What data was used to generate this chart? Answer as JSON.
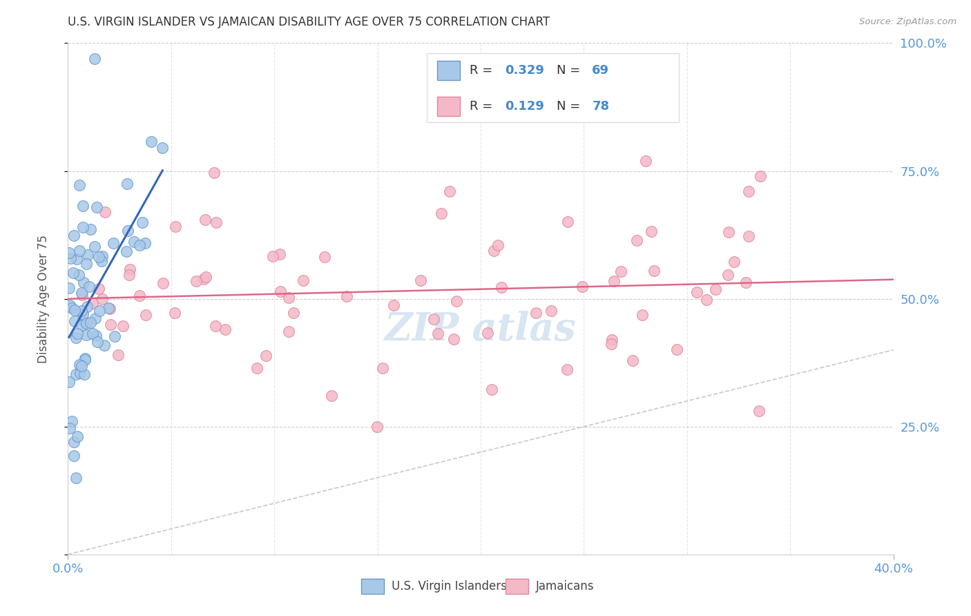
{
  "title": "U.S. VIRGIN ISLANDER VS JAMAICAN DISABILITY AGE OVER 75 CORRELATION CHART",
  "source": "Source: ZipAtlas.com",
  "ylabel": "Disability Age Over 75",
  "xlabel_vi": "U.S. Virgin Islanders",
  "xlabel_ja": "Jamaicans",
  "xlim": [
    0.0,
    0.4
  ],
  "ylim": [
    0.0,
    1.0
  ],
  "ytick_labels_right": [
    "25.0%",
    "50.0%",
    "75.0%",
    "100.0%"
  ],
  "yticks_right": [
    0.25,
    0.5,
    0.75,
    1.0
  ],
  "xtick_labels": [
    "0.0%",
    "40.0%"
  ],
  "xticks_show": [
    0.0,
    0.4
  ],
  "legend_R_vi": "0.329",
  "legend_N_vi": "69",
  "legend_R_ja": "0.129",
  "legend_N_ja": "78",
  "color_vi_fill": "#a8c8e8",
  "color_vi_edge": "#6699cc",
  "color_vi_line": "#3366bb",
  "color_ja_fill": "#f5b8c8",
  "color_ja_edge": "#dd8899",
  "color_ja_line": "#dd6688",
  "color_diag": "#bbbbbb",
  "color_tick_label": "#5599dd",
  "color_grid": "#cccccc",
  "title_color": "#333333",
  "watermark_color": "#b8d0e8",
  "legend_text_color": "#333333",
  "legend_number_color": "#4488cc"
}
